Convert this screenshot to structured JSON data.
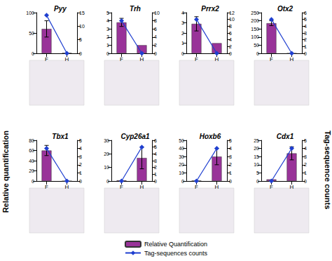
{
  "chart_data": [
    {
      "type": "bar",
      "title": "Pyy",
      "categories": [
        "F",
        "H"
      ],
      "series": [
        {
          "name": "Relative Quantification",
          "type": "bar",
          "color": "#993399",
          "values": [
            60,
            1
          ],
          "errors": [
            20,
            0
          ]
        },
        {
          "name": "Tag-sequences counts",
          "type": "line",
          "axis": "y2",
          "color": "#1f3fd0",
          "marker": "diamond",
          "values": [
            14,
            0
          ]
        }
      ],
      "ylim": [
        0,
        100
      ],
      "yticks": [
        0,
        50,
        100
      ],
      "y2lim": [
        0,
        15
      ],
      "y2ticks": [
        0,
        5,
        10,
        15
      ]
    },
    {
      "type": "bar",
      "title": "Trh",
      "categories": [
        "F",
        "H"
      ],
      "series": [
        {
          "name": "Relative Quantification",
          "type": "bar",
          "color": "#993399",
          "values": [
            3.8,
            1
          ],
          "errors": [
            0.5,
            0
          ]
        },
        {
          "name": "Tag-sequences counts",
          "type": "line",
          "axis": "y2",
          "color": "#1f3fd0",
          "marker": "diamond",
          "values": [
            8,
            0
          ]
        }
      ],
      "ylim": [
        0,
        5
      ],
      "yticks": [
        0,
        1,
        2,
        3,
        4,
        5
      ],
      "y2lim": [
        0,
        10
      ],
      "y2ticks": [
        0,
        2,
        4,
        6,
        8,
        10
      ]
    },
    {
      "type": "bar",
      "title": "Prrx2",
      "categories": [
        "F",
        "H"
      ],
      "series": [
        {
          "name": "Relative Quantification",
          "type": "bar",
          "color": "#993399",
          "values": [
            2.9,
            1
          ],
          "errors": [
            0.7,
            0
          ]
        },
        {
          "name": "Tag-sequences counts",
          "type": "line",
          "axis": "y2",
          "color": "#1f3fd0",
          "marker": "diamond",
          "values": [
            10,
            0
          ]
        }
      ],
      "ylim": [
        0,
        4
      ],
      "yticks": [
        0,
        1,
        2,
        3,
        4
      ],
      "y2lim": [
        0,
        12
      ],
      "y2ticks": [
        0,
        2,
        4,
        6,
        8,
        10,
        12
      ]
    },
    {
      "type": "bar",
      "title": "Otx2",
      "categories": [
        "F",
        "H"
      ],
      "series": [
        {
          "name": "Relative Quantification",
          "type": "bar",
          "color": "#993399",
          "values": [
            185,
            0
          ],
          "errors": [
            15,
            0
          ]
        },
        {
          "name": "Tag-sequences counts",
          "type": "line",
          "axis": "y2",
          "color": "#1f3fd0",
          "marker": "diamond",
          "values": [
            5,
            0
          ]
        }
      ],
      "ylim": [
        0,
        250
      ],
      "yticks": [
        0,
        50,
        100,
        150,
        200,
        250
      ],
      "y2lim": [
        0,
        6
      ],
      "y2ticks": [
        0,
        1,
        2,
        3,
        4,
        5,
        6
      ]
    },
    {
      "type": "bar",
      "title": "Tbx1",
      "categories": [
        "F",
        "H"
      ],
      "series": [
        {
          "name": "Relative Quantification",
          "type": "bar",
          "color": "#993399",
          "values": [
            60,
            0
          ],
          "errors": [
            10,
            0
          ]
        },
        {
          "name": "Tag-sequences counts",
          "type": "line",
          "axis": "y2",
          "color": "#1f3fd0",
          "marker": "diamond",
          "values": [
            4,
            0
          ]
        }
      ],
      "ylim": [
        0,
        80
      ],
      "yticks": [
        0,
        20,
        40,
        60,
        80
      ],
      "y2lim": [
        0,
        5
      ],
      "y2ticks": [
        0,
        1,
        2,
        3,
        4,
        5
      ]
    },
    {
      "type": "bar",
      "title": "Cyp26a1",
      "categories": [
        "F",
        "H"
      ],
      "series": [
        {
          "name": "Relative Quantification",
          "type": "bar",
          "color": "#993399",
          "values": [
            0.5,
            17
          ],
          "errors": [
            0,
            8
          ]
        },
        {
          "name": "Tag-sequences counts",
          "type": "line",
          "axis": "y2",
          "color": "#1f3fd0",
          "marker": "diamond",
          "values": [
            0,
            5
          ]
        }
      ],
      "ylim": [
        0,
        30
      ],
      "yticks": [
        0,
        10,
        20,
        30
      ],
      "y2lim": [
        0,
        6
      ],
      "y2ticks": [
        0,
        1,
        2,
        3,
        4,
        5,
        6
      ]
    },
    {
      "type": "bar",
      "title": "Hoxb6",
      "categories": [
        "F",
        "H"
      ],
      "series": [
        {
          "name": "Relative Quantification",
          "type": "bar",
          "color": "#993399",
          "values": [
            0.5,
            30
          ],
          "errors": [
            0,
            10
          ]
        },
        {
          "name": "Tag-sequences counts",
          "type": "line",
          "axis": "y2",
          "color": "#1f3fd0",
          "marker": "diamond",
          "values": [
            0,
            4
          ]
        }
      ],
      "ylim": [
        0,
        50
      ],
      "yticks": [
        0,
        10,
        20,
        30,
        40,
        50
      ],
      "y2lim": [
        0,
        5
      ],
      "y2ticks": [
        0,
        1,
        2,
        3,
        4,
        5
      ]
    },
    {
      "type": "bar",
      "title": "Cdx1",
      "categories": [
        "F",
        "H"
      ],
      "series": [
        {
          "name": "Relative Quantification",
          "type": "bar",
          "color": "#993399",
          "values": [
            1,
            17
          ],
          "errors": [
            0,
            4
          ]
        },
        {
          "name": "Tag-sequences counts",
          "type": "line",
          "axis": "y2",
          "color": "#1f3fd0",
          "marker": "diamond",
          "values": [
            0,
            4
          ]
        }
      ],
      "ylim": [
        0,
        25
      ],
      "yticks": [
        0,
        5,
        10,
        15,
        20,
        25
      ],
      "y2lim": [
        0,
        5
      ],
      "y2ticks": [
        0,
        1,
        2,
        3,
        4,
        5
      ]
    }
  ],
  "ylabel": "Relative quantification",
  "y2label": "Tag-sequence counts",
  "legend": "bottom"
}
